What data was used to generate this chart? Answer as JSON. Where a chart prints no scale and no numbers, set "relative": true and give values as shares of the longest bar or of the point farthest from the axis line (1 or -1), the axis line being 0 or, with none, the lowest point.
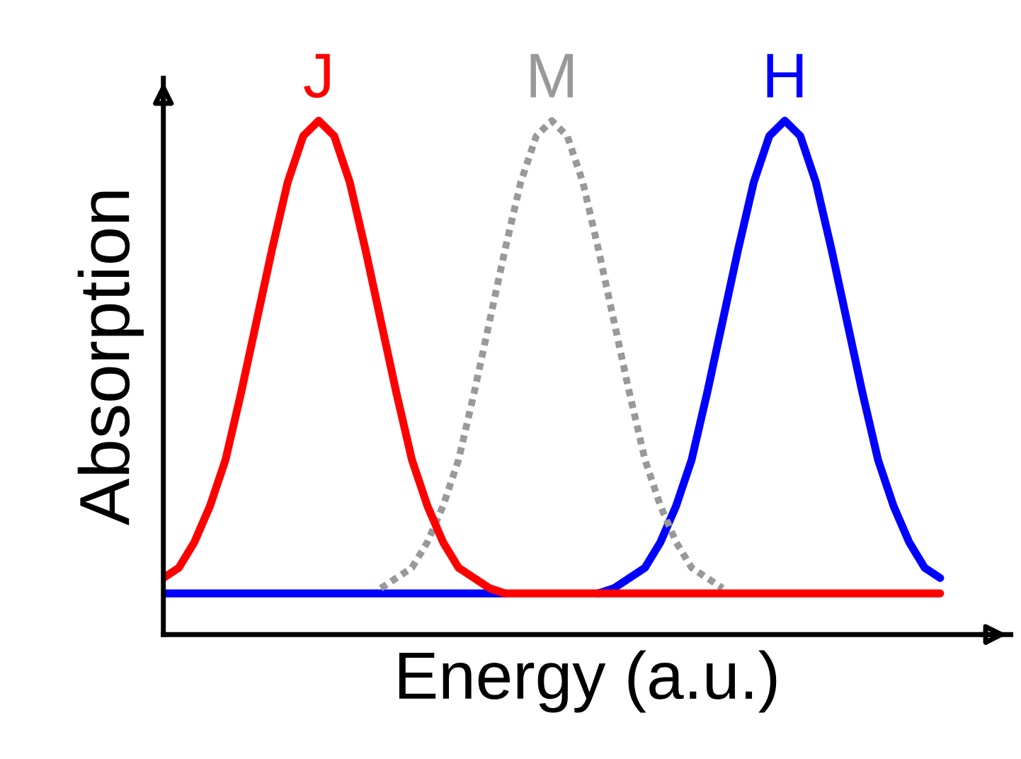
{
  "chart_data": {
    "type": "line",
    "relative": true,
    "xlabel": "Energy (a.u.)",
    "ylabel": "Absorption",
    "marker": "none",
    "legend": false,
    "categories": [
      null,
      null,
      null,
      null,
      null,
      null,
      null,
      null,
      null,
      null,
      null,
      null,
      null,
      null,
      null,
      null,
      null,
      null,
      null,
      null,
      null,
      null,
      null,
      null,
      null,
      null,
      null,
      null,
      null,
      null,
      null,
      null,
      null,
      null,
      null,
      null,
      null,
      null,
      null,
      null,
      null,
      null,
      null,
      null,
      null,
      null,
      null,
      null,
      null,
      null,
      null
    ],
    "series": [
      {
        "name": "H",
        "color": "#0000ff",
        "line_style": "solid",
        "values": [
          0.08,
          0.08,
          0.08,
          0.08,
          0.08,
          0.08,
          0.08,
          0.08,
          0.08,
          0.08,
          0.08,
          0.08,
          0.08,
          0.08,
          0.08,
          0.08,
          0.08,
          0.08,
          0.08,
          0.08,
          0.08,
          0.08,
          0.08,
          null,
          null,
          null,
          null,
          null,
          0.08,
          0.09,
          0.11,
          0.13,
          0.18,
          0.25,
          0.34,
          0.47,
          0.61,
          0.75,
          0.88,
          0.97,
          1.0,
          0.97,
          0.88,
          0.75,
          0.61,
          0.47,
          0.34,
          0.25,
          0.18,
          0.13,
          0.11
        ]
      },
      {
        "name": "M",
        "color": "#999999",
        "line_style": "dotted",
        "values": [
          null,
          null,
          null,
          null,
          null,
          null,
          null,
          null,
          null,
          null,
          null,
          null,
          null,
          null,
          0.09,
          0.11,
          0.13,
          0.18,
          0.25,
          0.34,
          0.47,
          0.61,
          0.75,
          0.88,
          0.97,
          1.0,
          0.97,
          0.88,
          0.75,
          0.61,
          0.47,
          0.34,
          0.25,
          0.18,
          0.13,
          0.11,
          0.09,
          null,
          null,
          null,
          null,
          null,
          null,
          null,
          null,
          null,
          null,
          null,
          null,
          null,
          null
        ]
      },
      {
        "name": "J",
        "color": "#ff0000",
        "line_style": "solid",
        "values": [
          0.11,
          0.13,
          0.18,
          0.25,
          0.34,
          0.47,
          0.61,
          0.75,
          0.88,
          0.97,
          1.0,
          0.97,
          0.88,
          0.75,
          0.61,
          0.47,
          0.34,
          0.25,
          0.18,
          0.13,
          0.11,
          0.09,
          0.08,
          0.08,
          0.08,
          0.08,
          0.08,
          0.08,
          0.08,
          0.08,
          0.08,
          0.08,
          0.08,
          0.08,
          0.08,
          0.08,
          0.08,
          0.08,
          0.08,
          0.08,
          0.08,
          0.08,
          0.08,
          0.08,
          0.08,
          0.08,
          0.08,
          0.08,
          0.08,
          0.08,
          0.08
        ]
      }
    ]
  }
}
